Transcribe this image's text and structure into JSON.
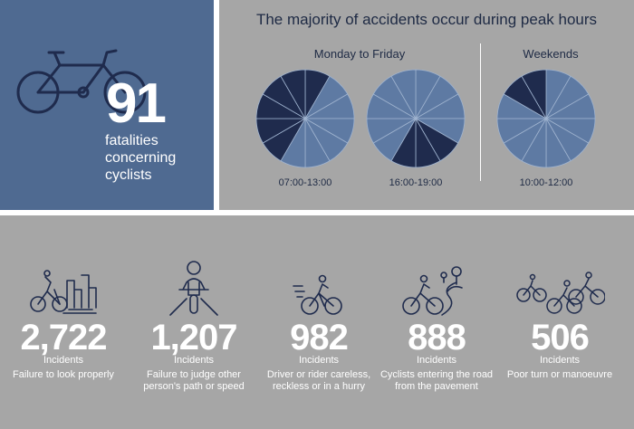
{
  "fatalities": {
    "number": "91",
    "text": "fatalities concerning cyclists"
  },
  "headline": "The majority of accidents occur during peak hours",
  "groups": [
    {
      "label": "Monday to Friday"
    },
    {
      "label": "Weekends"
    }
  ],
  "clocks": [
    {
      "time": "07:00-13:00",
      "dark_from_hour": 7,
      "dark_to_hour": 13
    },
    {
      "time": "16:00-19:00",
      "dark_from_hour": 16,
      "dark_to_hour": 19
    },
    {
      "time": "10:00-12:00",
      "dark_from_hour": 10,
      "dark_to_hour": 12
    }
  ],
  "colors": {
    "dark": "#1f2b4d",
    "light": "#5e7aa3",
    "panel_blue": "#4f6a91",
    "panel_grey": "#a6a6a6"
  },
  "stats": [
    {
      "number": "2,722",
      "unit": "Incidents",
      "desc": "Failure to look properly",
      "icon": "cyclist-city-icon"
    },
    {
      "number": "1,207",
      "unit": "Incidents",
      "desc": "Failure to judge other person's path or speed",
      "icon": "cyclist-front-icon"
    },
    {
      "number": "982",
      "unit": "Incidents",
      "desc": "Driver or rider careless, reckless or in a hurry",
      "icon": "cyclist-speed-icon"
    },
    {
      "number": "888",
      "unit": "Incidents",
      "desc": "Cyclists entering the road from the pavement",
      "icon": "cyclist-road-icon"
    },
    {
      "number": "506",
      "unit": "Incidents",
      "desc": "Poor turn or manoeuvre",
      "icon": "cyclist-group-icon"
    }
  ]
}
